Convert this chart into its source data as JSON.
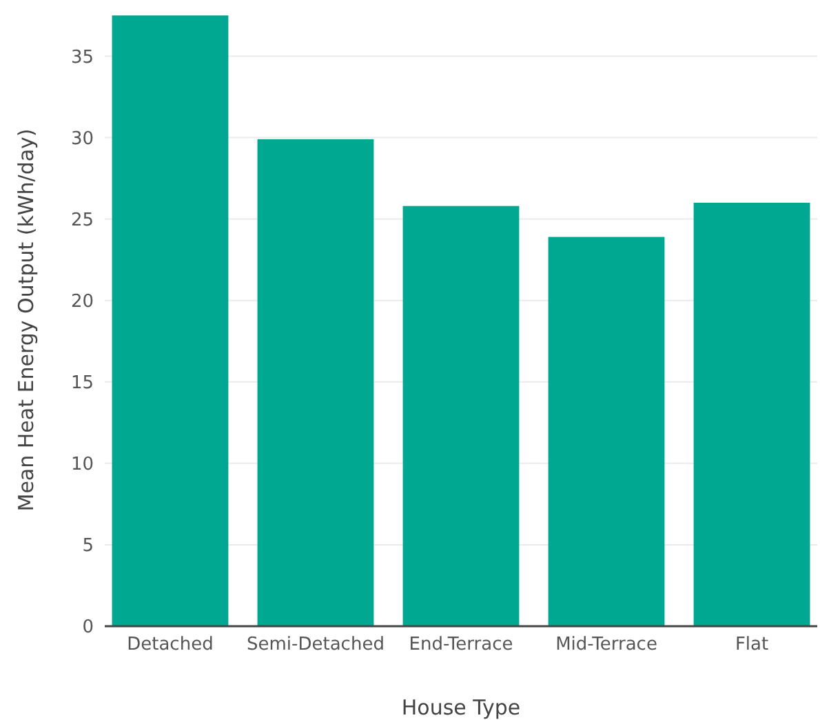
{
  "chart_data": {
    "type": "bar",
    "xlabel": "House Type",
    "ylabel": "Mean Heat Energy Output (kWh/day)",
    "categories": [
      "Detached",
      "Semi-Detached",
      "End-Terrace",
      "Mid-Terrace",
      "Flat"
    ],
    "values": [
      37.5,
      29.9,
      25.8,
      23.9,
      26.0
    ],
    "color": "#00a891",
    "ylim": [
      0,
      37.6
    ],
    "yticks": [
      0,
      5,
      10,
      15,
      20,
      25,
      30,
      35
    ],
    "grid": "y"
  }
}
